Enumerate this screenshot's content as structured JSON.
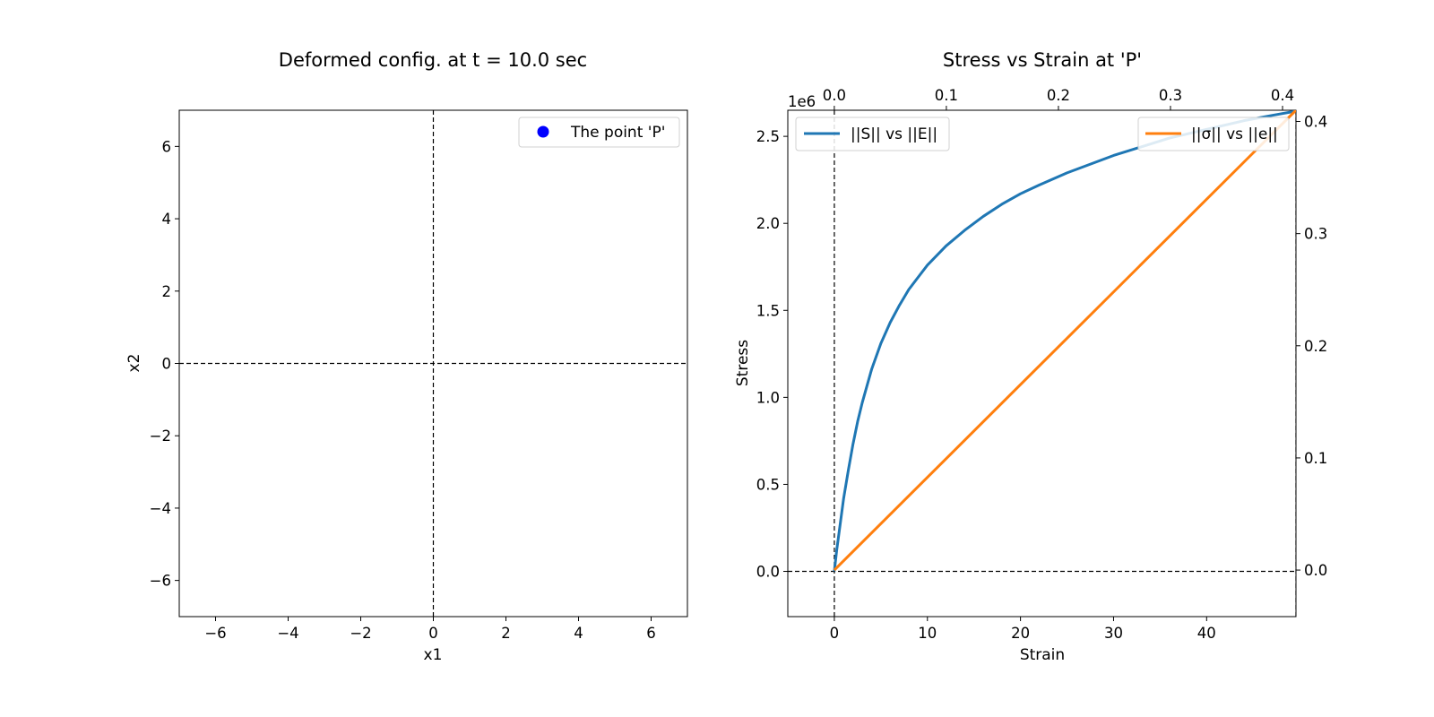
{
  "chart_data": [
    {
      "type": "scatter",
      "title": "Deformed config. at t = 10.0 sec",
      "xlabel": "x1",
      "ylabel": "x2",
      "xlim": [
        -7,
        7
      ],
      "ylim": [
        -7,
        7
      ],
      "xticks": [
        -6,
        -4,
        -2,
        0,
        2,
        4,
        6
      ],
      "yticks": [
        -6,
        -4,
        -2,
        0,
        2,
        4,
        6
      ],
      "xtick_labels": [
        "−6",
        "−4",
        "−2",
        "0",
        "2",
        "4",
        "6"
      ],
      "ytick_labels": [
        "−6",
        "−4",
        "−2",
        "0",
        "2",
        "4",
        "6"
      ],
      "reference_lines": {
        "x": 0,
        "y": 0,
        "style": "dashed"
      },
      "legend": {
        "placement": "upper-right",
        "entries": [
          {
            "label": "The point 'P'",
            "color": "#0000ff",
            "marker": "circle"
          }
        ]
      },
      "series": [],
      "grid": false
    },
    {
      "type": "line",
      "title": "Stress vs Strain at 'P'",
      "xlabel": "Strain",
      "ylabel": "Stress",
      "offset_text": "1e6",
      "xlim": [
        -5,
        49.6
      ],
      "ylim": [
        -0.26,
        2.65
      ],
      "xticks": [
        0,
        10,
        20,
        30,
        40
      ],
      "xtick_labels": [
        "0",
        "10",
        "20",
        "30",
        "40"
      ],
      "yticks": [
        0.0,
        0.5,
        1.0,
        1.5,
        2.0,
        2.5
      ],
      "ytick_labels": [
        "0.0",
        "0.5",
        "1.0",
        "1.5",
        "2.0",
        "2.5"
      ],
      "secondary_x": {
        "lim": [
          -0.0415,
          0.412
        ],
        "ticks": [
          0.0,
          0.1,
          0.2,
          0.3,
          0.4
        ],
        "tick_labels": [
          "0.0",
          "0.1",
          "0.2",
          "0.3",
          "0.4"
        ]
      },
      "secondary_y": {
        "lim": [
          -0.0415,
          0.41
        ],
        "ticks": [
          0.0,
          0.1,
          0.2,
          0.3,
          0.4
        ],
        "tick_labels": [
          "0.0",
          "0.1",
          "0.2",
          "0.3",
          "0.4"
        ]
      },
      "reference_lines": {
        "x": 0,
        "y": 0,
        "x_right": 49.6,
        "style": "dashed"
      },
      "grid": false,
      "series": [
        {
          "name": "||S|| vs ||E||",
          "axes": "primary",
          "color": "#1f77b4",
          "legend_placement": "upper-left",
          "x": [
            0,
            0.25,
            0.5,
            1,
            1.5,
            2,
            2.5,
            3,
            4,
            5,
            6,
            7,
            8,
            9,
            10,
            12,
            14,
            16,
            18,
            20,
            22,
            25,
            28,
            30,
            33,
            36,
            40,
            44,
            47,
            49.6
          ],
          "y": [
            0,
            0.12,
            0.22,
            0.42,
            0.58,
            0.73,
            0.86,
            0.97,
            1.16,
            1.31,
            1.43,
            1.53,
            1.62,
            1.69,
            1.76,
            1.87,
            1.96,
            2.04,
            2.11,
            2.17,
            2.22,
            2.29,
            2.35,
            2.39,
            2.44,
            2.49,
            2.54,
            2.59,
            2.62,
            2.645
          ]
        },
        {
          "name": "||σ|| vs ||e||",
          "axes": "secondary",
          "color": "#ff7f0e",
          "legend_placement": "upper-right",
          "x": [
            0,
            0.412
          ],
          "y": [
            0,
            0.41
          ]
        }
      ]
    }
  ]
}
